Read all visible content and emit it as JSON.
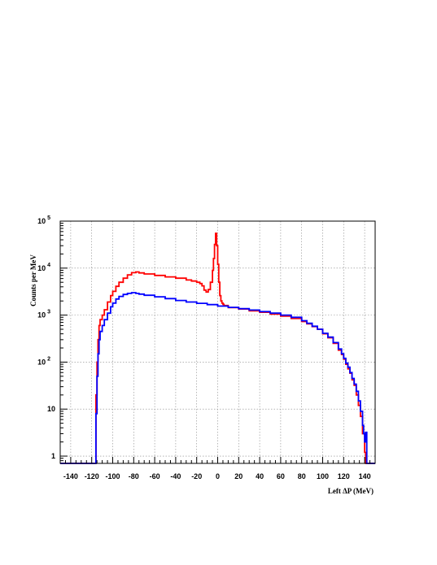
{
  "chart_data": {
    "type": "line",
    "title": "",
    "xlabel": "Left ΔP (MeV)",
    "ylabel": "Counts per MeV",
    "xlim": [
      -150,
      150
    ],
    "ylim": [
      0.7,
      100000
    ],
    "yscale": "log",
    "grid": true,
    "xticks": [
      -140,
      -120,
      -100,
      -80,
      -60,
      -40,
      -20,
      0,
      20,
      40,
      60,
      80,
      100,
      120,
      140
    ],
    "xtick_labels": [
      "-140",
      "-120",
      "-100",
      "-80",
      "-60",
      "-40",
      "-20",
      "0",
      "20",
      "40",
      "60",
      "80",
      "100",
      "120",
      "140"
    ],
    "ytick_labels": [
      {
        "value": 1,
        "base": "1",
        "exp": ""
      },
      {
        "value": 10,
        "base": "10",
        "exp": ""
      },
      {
        "value": 100,
        "base": "10",
        "exp": "2"
      },
      {
        "value": 1000,
        "base": "10",
        "exp": "3"
      },
      {
        "value": 10000,
        "base": "10",
        "exp": "4"
      },
      {
        "value": 100000,
        "base": "10",
        "exp": "5"
      }
    ],
    "series": [
      {
        "color": "#ff0000",
        "x": [
          -150,
          -116,
          -116,
          -115,
          -114,
          -113,
          -112,
          -110,
          -108,
          -105,
          -102,
          -100,
          -97,
          -94,
          -90,
          -86,
          -82,
          -78,
          -75,
          -70,
          -60,
          -50,
          -40,
          -30,
          -25,
          -20,
          -17,
          -15,
          -13,
          -11,
          -9,
          -7,
          -5,
          -4,
          -3,
          -2,
          -1,
          0,
          1,
          2,
          3,
          4,
          5,
          6,
          10,
          20,
          30,
          40,
          50,
          60,
          70,
          80,
          85,
          90,
          95,
          100,
          105,
          110,
          115,
          118,
          120,
          122,
          124,
          126,
          128,
          130,
          132,
          134,
          136,
          138,
          140,
          141,
          142,
          150
        ],
        "y": [
          0.7,
          0.7,
          20,
          100,
          300,
          600,
          800,
          1000,
          1300,
          1900,
          2600,
          3200,
          4100,
          5000,
          6100,
          7200,
          8000,
          8300,
          7900,
          7500,
          7000,
          6500,
          6100,
          5600,
          5300,
          5000,
          4700,
          4200,
          3400,
          3100,
          3500,
          5000,
          9000,
          16000,
          32000,
          55000,
          30000,
          12000,
          5000,
          2600,
          2000,
          1800,
          1700,
          1600,
          1450,
          1350,
          1230,
          1150,
          1050,
          950,
          850,
          730,
          650,
          570,
          500,
          400,
          330,
          250,
          180,
          145,
          115,
          90,
          72,
          58,
          42,
          32,
          20,
          12,
          7,
          3,
          1.2,
          0.7,
          0.7,
          0.7
        ]
      },
      {
        "color": "#0000ff",
        "x": [
          -150,
          -116,
          -116,
          -115,
          -114,
          -113,
          -112,
          -110,
          -108,
          -105,
          -102,
          -100,
          -97,
          -94,
          -90,
          -86,
          -82,
          -78,
          -75,
          -70,
          -60,
          -50,
          -40,
          -30,
          -20,
          -10,
          0,
          10,
          20,
          30,
          40,
          50,
          60,
          70,
          80,
          85,
          90,
          95,
          100,
          105,
          110,
          115,
          118,
          120,
          122,
          124,
          126,
          128,
          130,
          132,
          134,
          136,
          138,
          139,
          140,
          141,
          142,
          143,
          150
        ],
        "y": [
          0.7,
          0.7,
          8,
          50,
          150,
          300,
          450,
          600,
          800,
          1100,
          1500,
          1800,
          2200,
          2500,
          2750,
          2900,
          3000,
          2900,
          2800,
          2650,
          2450,
          2250,
          2050,
          1900,
          1780,
          1670,
          1560,
          1460,
          1370,
          1280,
          1190,
          1100,
          1000,
          900,
          760,
          670,
          580,
          500,
          410,
          340,
          260,
          190,
          150,
          120,
          95,
          78,
          60,
          45,
          34,
          24,
          15,
          9,
          4.5,
          3,
          2,
          3.2,
          0.7,
          0.7,
          0.7
        ]
      }
    ]
  }
}
